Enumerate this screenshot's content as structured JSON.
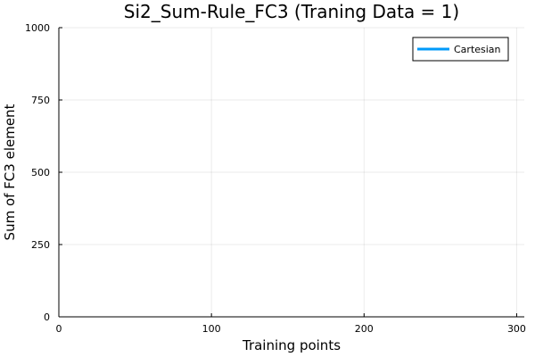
{
  "chart_data": {
    "type": "line",
    "title": "Si2_Sum-Rule_FC3 (Traning Data = 1)",
    "xlabel": "Training points",
    "ylabel": "Sum of FC3 element",
    "xlim": [
      0,
      305
    ],
    "ylim": [
      0,
      1000
    ],
    "x_ticks": [
      0,
      100,
      200,
      300
    ],
    "y_ticks": [
      0,
      250,
      500,
      750,
      1000
    ],
    "x_tick_labels": [
      "0",
      "100",
      "200",
      "300"
    ],
    "y_tick_labels": [
      "0",
      "250",
      "500",
      "750",
      "1000"
    ],
    "grid": true,
    "legend_position": "top-right",
    "series": [
      {
        "name": "Cartesian",
        "color": "#009AFA",
        "x": [],
        "y": []
      }
    ]
  }
}
